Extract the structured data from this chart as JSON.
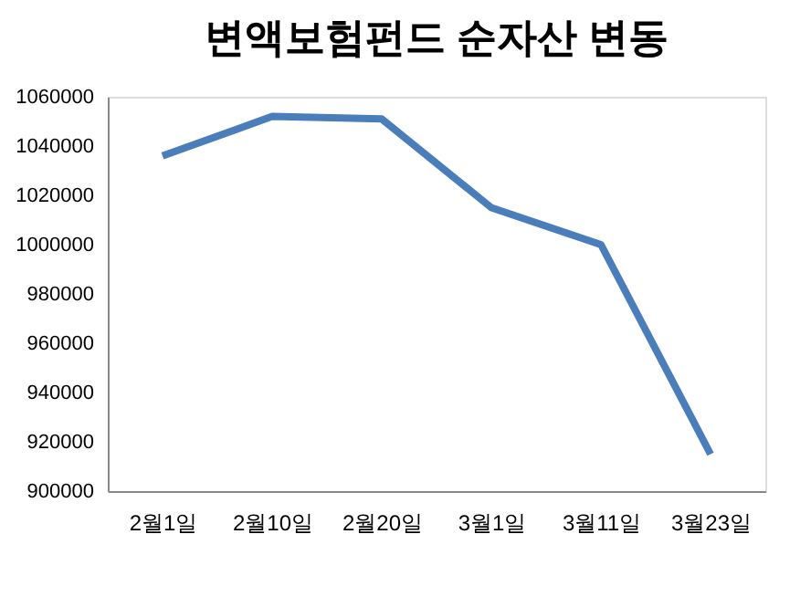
{
  "chart_data": {
    "type": "line",
    "title": "변액보험펀드 순자산 변동",
    "categories": [
      "2월1일",
      "2월10일",
      "2월20일",
      "3월1일",
      "3월11일",
      "3월23일"
    ],
    "series": [
      {
        "color": "#4a7ebb",
        "values": [
          1036000,
          1052000,
          1051000,
          1015000,
          1000000,
          915000
        ]
      }
    ],
    "ylim": [
      900000,
      1060000
    ],
    "yticks": [
      900000,
      920000,
      940000,
      960000,
      980000,
      1000000,
      1020000,
      1040000,
      1060000
    ],
    "grid": false,
    "legend": false,
    "marker": "none",
    "line_style": "solid"
  }
}
